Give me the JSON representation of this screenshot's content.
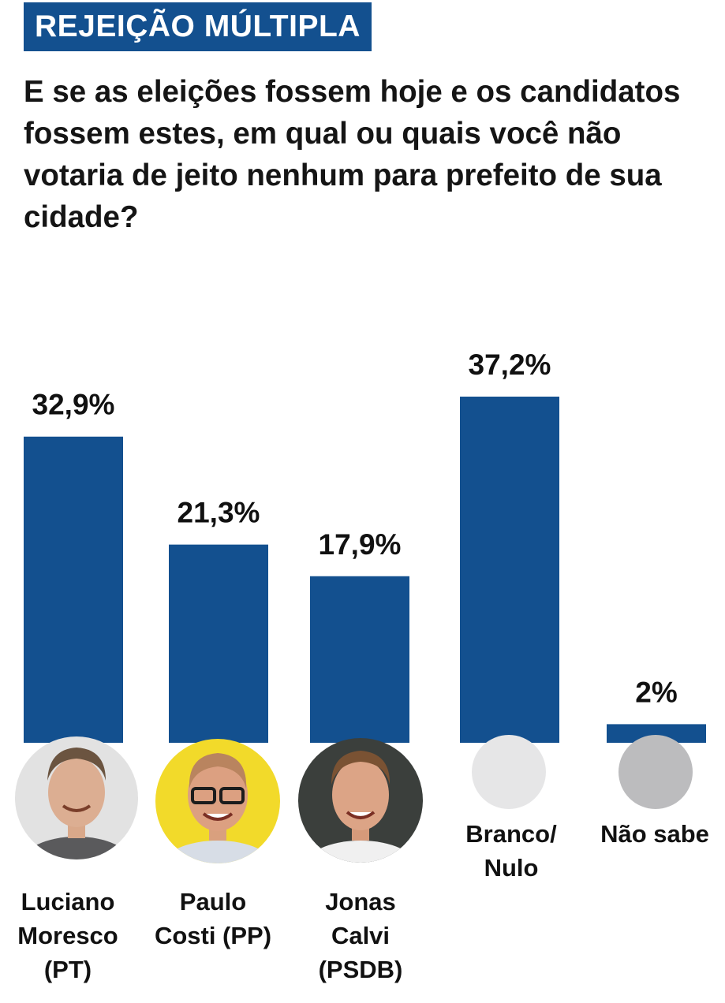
{
  "header": {
    "tag": "REJEIÇÃO MÚLTIPLA",
    "question": "E se as eleições fossem hoje e os candidatos fossem estes, em qual ou quais você não votaria de jeito nenhum para prefeito de sua cidade?"
  },
  "colors": {
    "accent": "#13508f",
    "bar": "#13508f",
    "placeholder_light": "#e6e6e7",
    "placeholder_dark": "#bcbcbe"
  },
  "chart_data": {
    "type": "bar",
    "title": "E se as eleições fossem hoje e os candidatos fossem estes, em qual ou quais você não votaria de jeito nenhum para prefeito de sua cidade?",
    "categories": [
      "Luciano Moresco (PT)",
      "Paulo Costi (PP)",
      "Jonas Calvi (PSDB)",
      "Branco/ Nulo",
      "Não sabe"
    ],
    "values": [
      32.9,
      21.3,
      17.9,
      37.2,
      2
    ],
    "value_labels": [
      "32,9%",
      "21,3%",
      "17,9%",
      "37,2%",
      "2%"
    ],
    "xlabel": "",
    "ylabel": "",
    "ylim": [
      0,
      37.2
    ],
    "grid": false,
    "legend": "none",
    "category_icons": [
      "candidate-photo",
      "candidate-photo",
      "candidate-photo",
      "light-gray-circle",
      "gray-circle"
    ]
  },
  "labels": [
    {
      "lines": "Luciano\nMoresco\n(PT)"
    },
    {
      "lines": "Paulo\nCosti (PP)"
    },
    {
      "lines": "Jonas\nCalvi\n(PSDB)"
    },
    {
      "lines": "Branco/\nNulo"
    },
    {
      "lines": "Não sabe"
    }
  ]
}
